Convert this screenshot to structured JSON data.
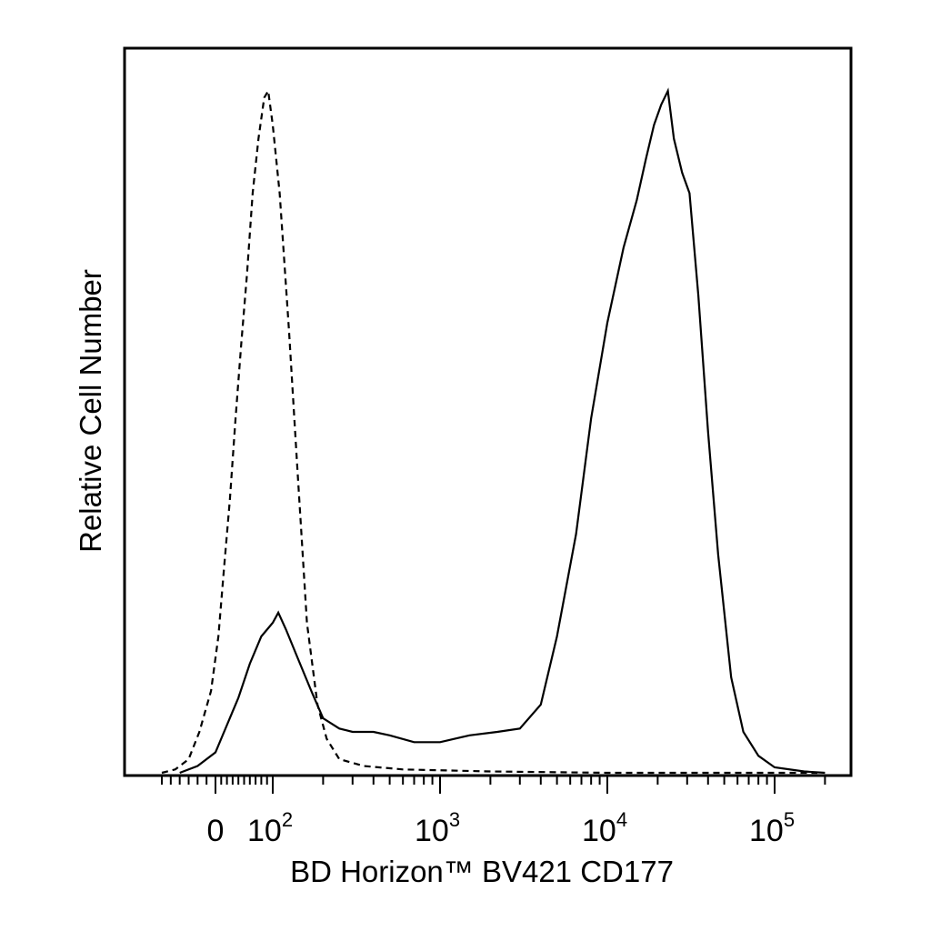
{
  "chart_data": {
    "type": "line",
    "title": "",
    "xlabel": "BD Horizon™ BV421 CD177",
    "ylabel": "Relative Cell Number",
    "x_scale": "biexponential (log above 10^2)",
    "xlim": [
      -60,
      200000
    ],
    "ylim": [
      0,
      1
    ],
    "y_ticks_shown": false,
    "grid": false,
    "legend": "none",
    "x_tick_labels": [
      {
        "value": 0,
        "base": "0",
        "exp": ""
      },
      {
        "value": 100,
        "base": "10",
        "exp": "2"
      },
      {
        "value": 1000,
        "base": "10",
        "exp": "3"
      },
      {
        "value": 10000,
        "base": "10",
        "exp": "4"
      },
      {
        "value": 100000,
        "base": "10",
        "exp": "5"
      }
    ],
    "series": [
      {
        "style": "dashed",
        "color": "#000000",
        "points": [
          [
            -60,
            0.0
          ],
          [
            -45,
            0.005
          ],
          [
            -30,
            0.02
          ],
          [
            -18,
            0.06
          ],
          [
            -5,
            0.12
          ],
          [
            5,
            0.2
          ],
          [
            15,
            0.3
          ],
          [
            25,
            0.4
          ],
          [
            35,
            0.52
          ],
          [
            45,
            0.63
          ],
          [
            55,
            0.73
          ],
          [
            65,
            0.85
          ],
          [
            75,
            0.93
          ],
          [
            85,
            0.99
          ],
          [
            92,
            1.0
          ],
          [
            100,
            0.95
          ],
          [
            110,
            0.85
          ],
          [
            125,
            0.65
          ],
          [
            140,
            0.45
          ],
          [
            160,
            0.22
          ],
          [
            185,
            0.1
          ],
          [
            210,
            0.05
          ],
          [
            250,
            0.02
          ],
          [
            350,
            0.01
          ],
          [
            600,
            0.005
          ],
          [
            2000,
            0.002
          ],
          [
            10000,
            0.0
          ],
          [
            100000,
            0.0
          ],
          [
            180000,
            0.0
          ]
        ]
      },
      {
        "style": "solid",
        "color": "#000000",
        "points": [
          [
            -40,
            0.0
          ],
          [
            -20,
            0.01
          ],
          [
            0,
            0.03
          ],
          [
            20,
            0.07
          ],
          [
            40,
            0.11
          ],
          [
            60,
            0.16
          ],
          [
            80,
            0.2
          ],
          [
            100,
            0.22
          ],
          [
            108,
            0.235
          ],
          [
            120,
            0.21
          ],
          [
            140,
            0.17
          ],
          [
            170,
            0.12
          ],
          [
            200,
            0.08
          ],
          [
            250,
            0.065
          ],
          [
            300,
            0.06
          ],
          [
            400,
            0.06
          ],
          [
            500,
            0.055
          ],
          [
            700,
            0.045
          ],
          [
            1000,
            0.045
          ],
          [
            1500,
            0.055
          ],
          [
            2200,
            0.06
          ],
          [
            3000,
            0.065
          ],
          [
            4000,
            0.1
          ],
          [
            5000,
            0.2
          ],
          [
            6500,
            0.35
          ],
          [
            8000,
            0.52
          ],
          [
            10000,
            0.66
          ],
          [
            12500,
            0.77
          ],
          [
            15000,
            0.84
          ],
          [
            17000,
            0.9
          ],
          [
            19000,
            0.95
          ],
          [
            21000,
            0.98
          ],
          [
            23000,
            1.0
          ],
          [
            25000,
            0.93
          ],
          [
            28000,
            0.88
          ],
          [
            31000,
            0.85
          ],
          [
            35000,
            0.7
          ],
          [
            40000,
            0.5
          ],
          [
            46000,
            0.32
          ],
          [
            55000,
            0.14
          ],
          [
            65000,
            0.06
          ],
          [
            80000,
            0.025
          ],
          [
            100000,
            0.008
          ],
          [
            150000,
            0.002
          ],
          [
            200000,
            0.0
          ]
        ]
      }
    ]
  }
}
